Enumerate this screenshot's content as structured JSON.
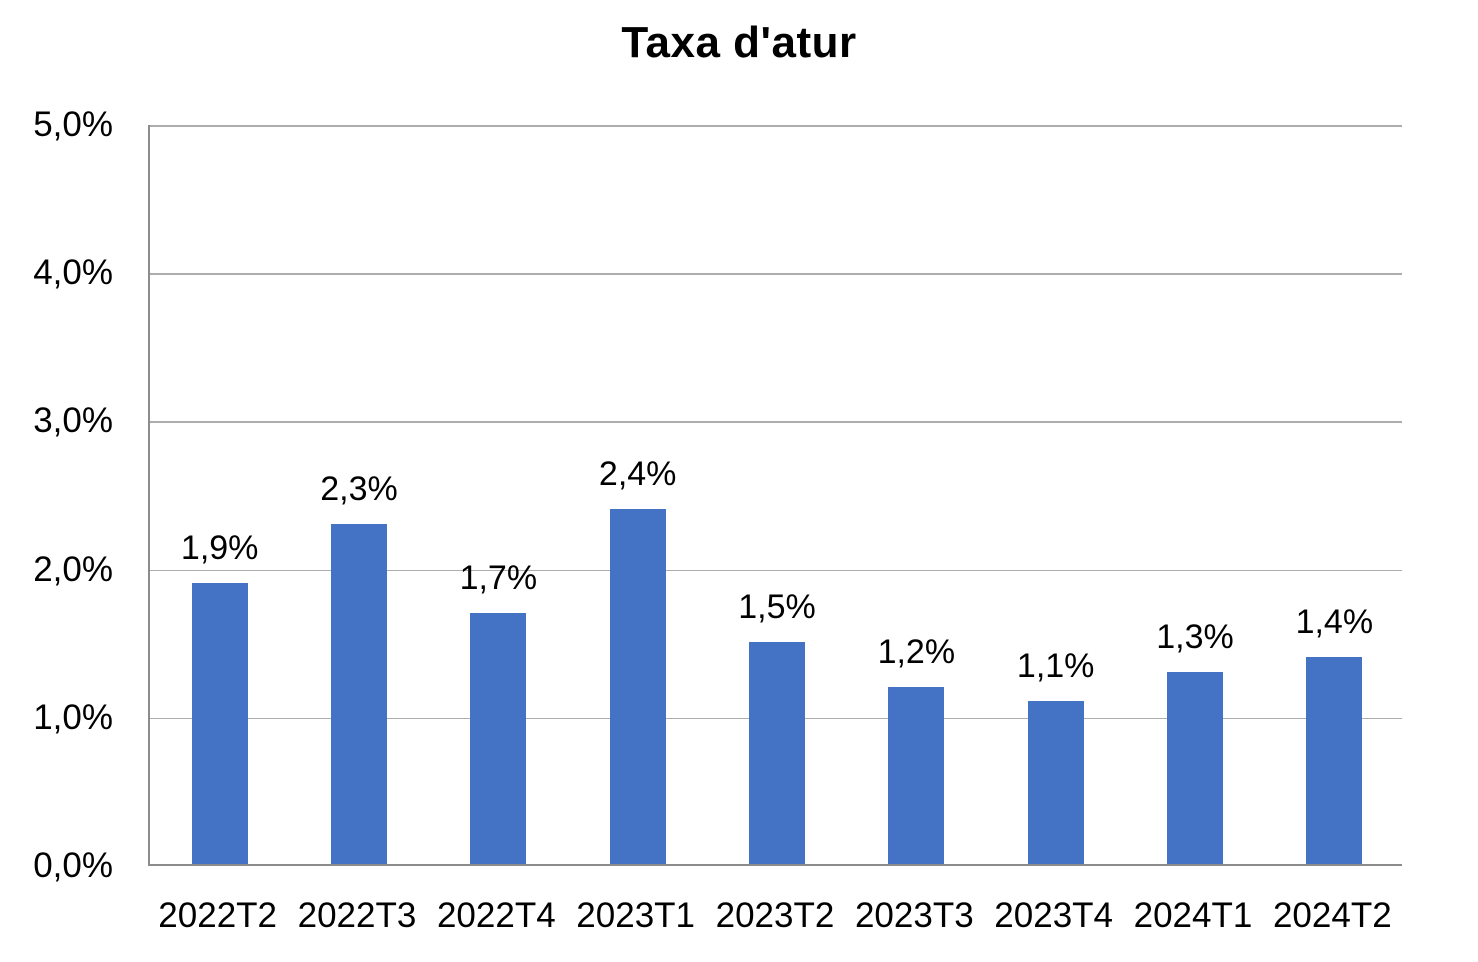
{
  "chart_data": {
    "type": "bar",
    "title": "Taxa d'atur",
    "categories": [
      "2022T2",
      "2022T3",
      "2022T4",
      "2023T1",
      "2023T2",
      "2023T3",
      "2023T4",
      "2024T1",
      "2024T2"
    ],
    "values": [
      1.9,
      2.3,
      1.7,
      2.4,
      1.5,
      1.2,
      1.1,
      1.3,
      1.4
    ],
    "data_labels": [
      "1,9%",
      "2,3%",
      "1,7%",
      "2,4%",
      "1,5%",
      "1,2%",
      "1,1%",
      "1,3%",
      "1,4%"
    ],
    "xlabel": "",
    "ylabel": "",
    "ylim": [
      0,
      5
    ],
    "y_ticks": [
      {
        "value": 5,
        "label": "5,0%"
      },
      {
        "value": 4,
        "label": "4,0%"
      },
      {
        "value": 3,
        "label": "3,0%"
      },
      {
        "value": 2,
        "label": "2,0%"
      },
      {
        "value": 1,
        "label": "1,0%"
      },
      {
        "value": 0,
        "label": "0,0%"
      }
    ],
    "grid": true,
    "legend": false,
    "colors": {
      "bar": "#4472C4",
      "gridline": "#ADADAD",
      "axis_line": "#8C8C8C",
      "text": "#000000",
      "background": "#FFFFFF"
    }
  }
}
